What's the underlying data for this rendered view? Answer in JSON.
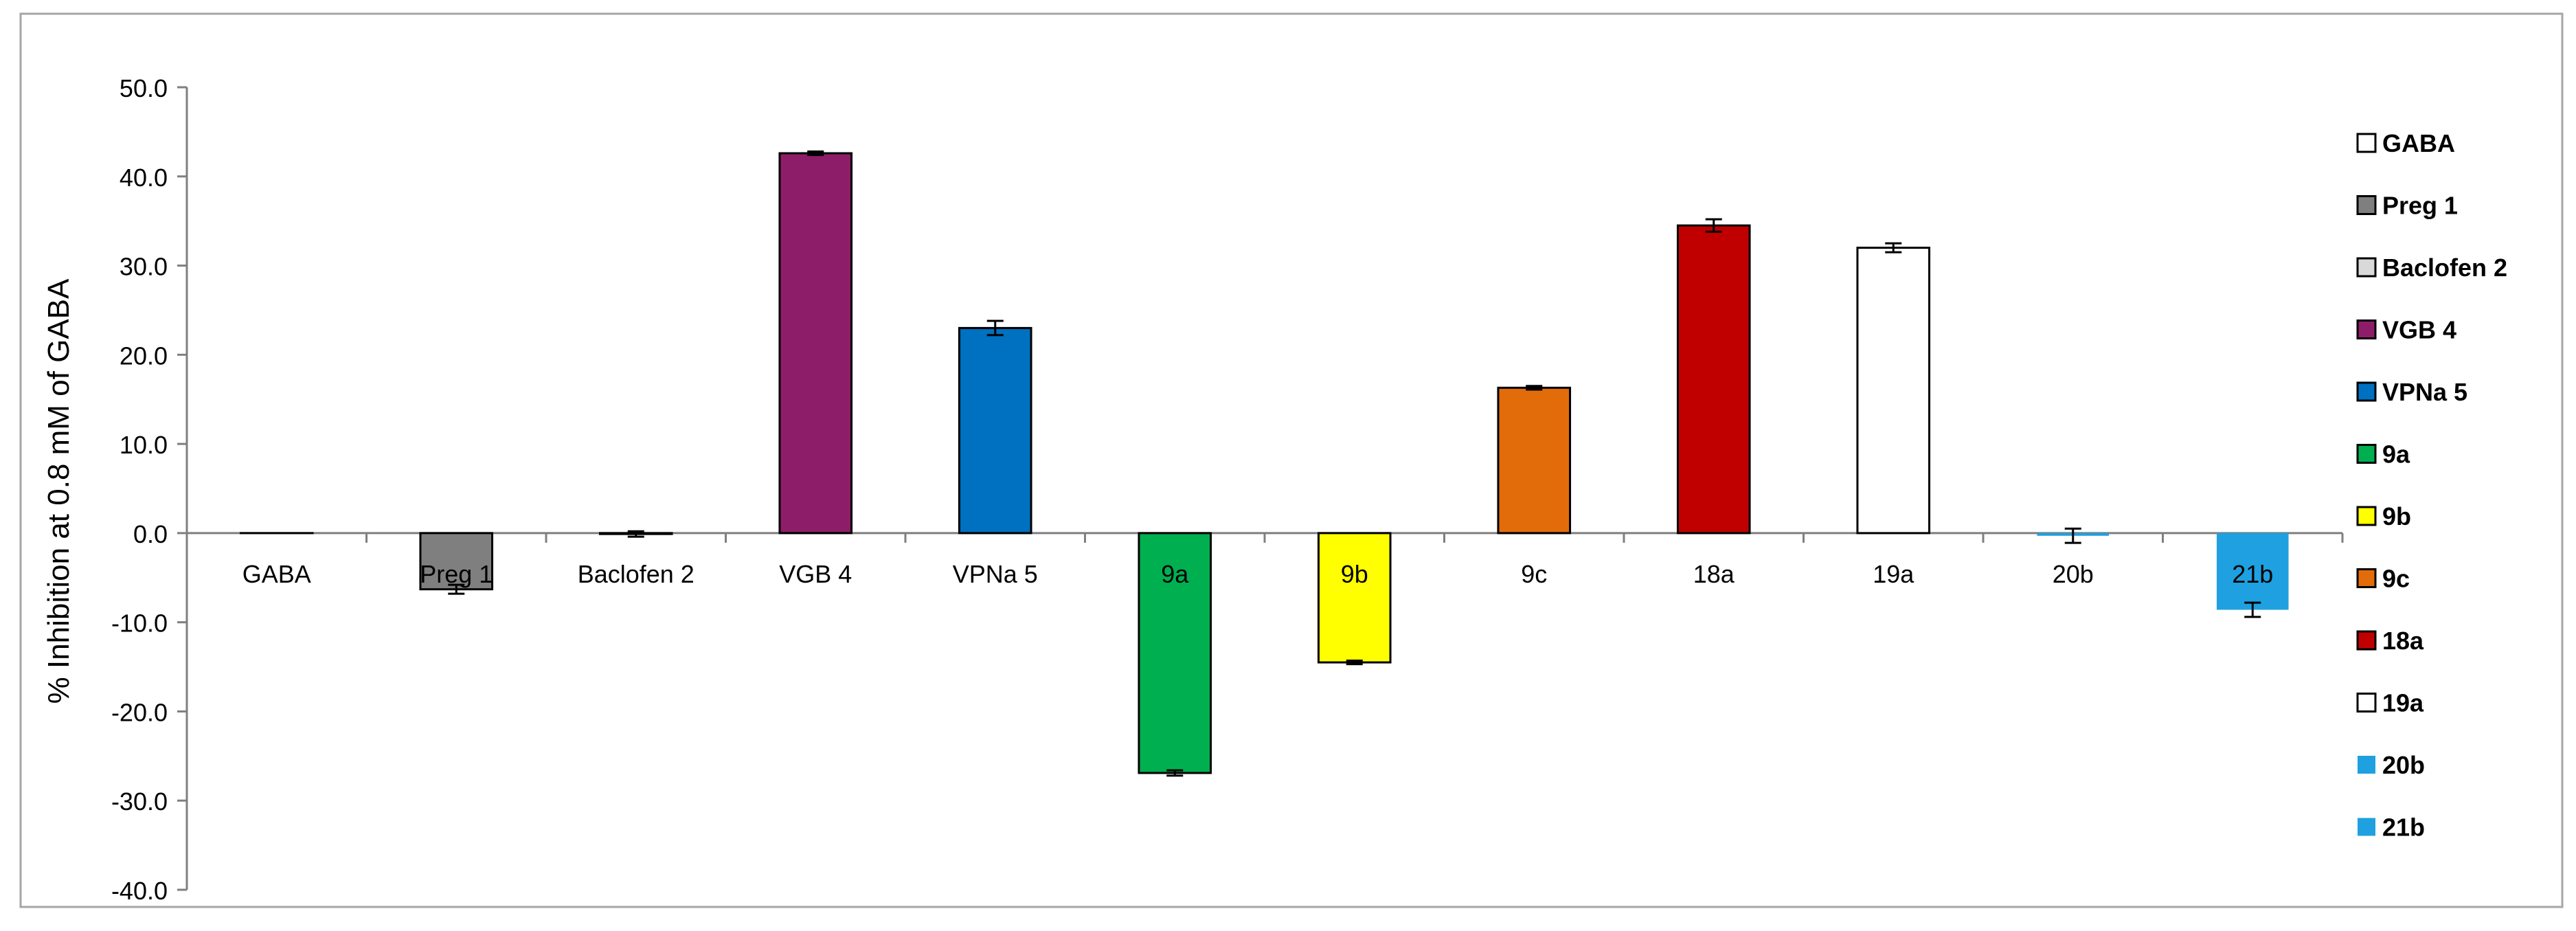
{
  "chart_data": {
    "type": "bar",
    "title": "",
    "xlabel": "",
    "ylabel": "% Inhibition at 0.8 mM of GABA",
    "ylim": [
      -40,
      50
    ],
    "ytick_step": 10,
    "yticks": [
      "50.0",
      "40.0",
      "30.0",
      "20.0",
      "10.0",
      "0.0",
      "-10.0",
      "-20.0",
      "-30.0",
      "-40.0"
    ],
    "grid": false,
    "legend_position": "right",
    "categories": [
      "GABA",
      "Preg 1",
      "Baclofen 2",
      "VGB 4",
      "VPNa 5",
      "9a",
      "9b",
      "9c",
      "18a",
      "19a",
      "20b",
      "21b"
    ],
    "values": [
      0.0,
      -6.3,
      -0.1,
      42.6,
      23.0,
      -26.9,
      -14.5,
      16.3,
      34.5,
      32.0,
      -0.3,
      -8.6
    ],
    "errors": [
      0.0,
      0.5,
      0.3,
      0.2,
      0.8,
      0.3,
      0.2,
      0.2,
      0.7,
      0.5,
      0.8,
      0.8
    ],
    "colors": [
      "#ffffff",
      "#7f7f7f",
      "#d9d9d9",
      "#8e1d69",
      "#0070c0",
      "#00b050",
      "#ffff00",
      "#e36c0a",
      "#c00000",
      "#ffffff",
      "#1fa0e0",
      "#1fa0e0"
    ],
    "bordered": [
      true,
      true,
      true,
      true,
      true,
      true,
      true,
      true,
      true,
      true,
      false,
      false
    ],
    "legend": [
      "GABA",
      "Preg 1",
      "Baclofen 2",
      "VGB 4",
      "VPNa 5",
      "9a",
      "9b",
      "9c",
      "18a",
      "19a",
      "20b",
      "21b"
    ]
  }
}
